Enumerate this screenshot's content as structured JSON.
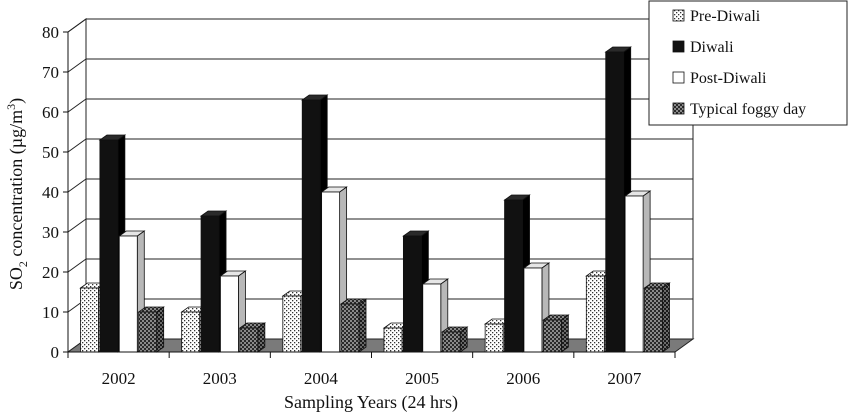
{
  "chart_data": {
    "type": "bar",
    "title": "",
    "xlabel": "Sampling Years (24 hrs)",
    "ylabel_main": "SO",
    "ylabel_sub": "2",
    "ylabel_rest": " concentration (µg/m",
    "ylabel_sup": "3",
    "ylabel_close": ")",
    "ylim": [
      0,
      80
    ],
    "yticks": [
      "0",
      "10",
      "20",
      "30",
      "40",
      "50",
      "60",
      "70",
      "80"
    ],
    "categories": [
      "2002",
      "2003",
      "2004",
      "2005",
      "2006",
      "2007"
    ],
    "legend_position": "top-right",
    "grid": true,
    "series": [
      {
        "name": "Pre-Diwali",
        "pattern": "dots",
        "values": [
          16,
          10,
          14,
          6,
          7,
          19
        ]
      },
      {
        "name": "Diwali",
        "pattern": "solid-black",
        "values": [
          53,
          34,
          63,
          29,
          38,
          75
        ]
      },
      {
        "name": "Post-Diwali",
        "pattern": "white",
        "values": [
          29,
          19,
          40,
          17,
          21,
          39
        ]
      },
      {
        "name": "Typical foggy day",
        "pattern": "checker",
        "values": [
          10,
          6,
          12,
          5,
          8,
          16
        ]
      }
    ]
  }
}
